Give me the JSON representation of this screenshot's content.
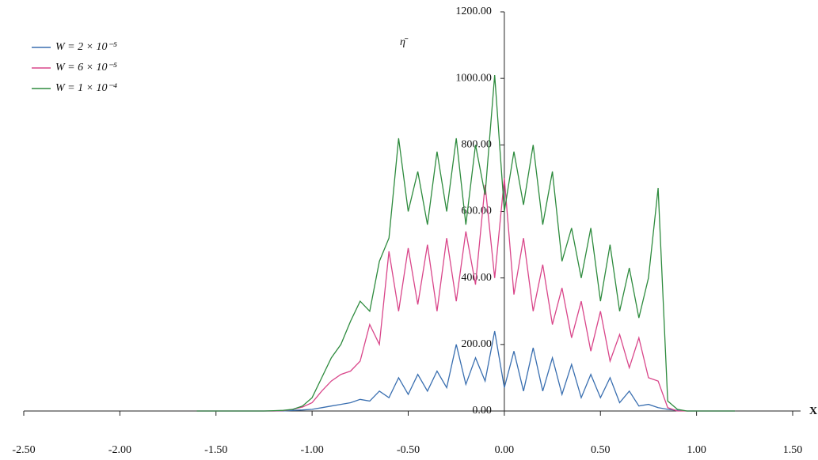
{
  "chart_data": {
    "type": "line",
    "x_label": "X",
    "y_label": "η̄",
    "x": [
      -1.6,
      -1.55,
      -1.5,
      -1.45,
      -1.4,
      -1.35,
      -1.3,
      -1.25,
      -1.2,
      -1.15,
      -1.1,
      -1.05,
      -1.0,
      -0.95,
      -0.9,
      -0.85,
      -0.8,
      -0.75,
      -0.7,
      -0.65,
      -0.6,
      -0.55,
      -0.5,
      -0.45,
      -0.4,
      -0.35,
      -0.3,
      -0.25,
      -0.2,
      -0.15,
      -0.1,
      -0.05,
      0.0,
      0.05,
      0.1,
      0.15,
      0.2,
      0.25,
      0.3,
      0.35,
      0.4,
      0.45,
      0.5,
      0.55,
      0.6,
      0.65,
      0.7,
      0.75,
      0.8,
      0.85,
      0.9,
      0.95,
      1.0,
      1.05,
      1.1,
      1.15,
      1.2
    ],
    "series": [
      {
        "name": "W = 2 × 10⁻⁵",
        "color": "#3a6fb0",
        "values": [
          0,
          0,
          0,
          0,
          0,
          0,
          0,
          0,
          0,
          0,
          2,
          3,
          5,
          10,
          15,
          20,
          25,
          35,
          30,
          60,
          40,
          100,
          50,
          110,
          60,
          120,
          70,
          200,
          80,
          160,
          90,
          240,
          70,
          180,
          60,
          190,
          60,
          160,
          50,
          140,
          40,
          110,
          40,
          100,
          25,
          60,
          15,
          20,
          10,
          5,
          2,
          0,
          0,
          0,
          0,
          0,
          0
        ]
      },
      {
        "name": "W = 6 × 10⁻⁵",
        "color": "#d9468a",
        "values": [
          0,
          0,
          0,
          0,
          0,
          0,
          0,
          0,
          0,
          1,
          5,
          12,
          25,
          60,
          90,
          110,
          120,
          150,
          260,
          200,
          480,
          300,
          490,
          320,
          500,
          300,
          520,
          330,
          540,
          380,
          680,
          400,
          700,
          350,
          520,
          300,
          440,
          260,
          370,
          220,
          330,
          180,
          300,
          150,
          230,
          130,
          220,
          100,
          90,
          10,
          0,
          0,
          0,
          0,
          0,
          0,
          0
        ]
      },
      {
        "name": "W = 1 × 10⁻⁴",
        "color": "#2e8b3e",
        "values": [
          0,
          0,
          0,
          0,
          0,
          0,
          0,
          0,
          1,
          2,
          5,
          15,
          40,
          100,
          160,
          200,
          270,
          330,
          300,
          450,
          520,
          820,
          600,
          720,
          560,
          780,
          600,
          820,
          560,
          800,
          650,
          1010,
          600,
          780,
          620,
          800,
          560,
          720,
          450,
          550,
          400,
          550,
          330,
          500,
          300,
          430,
          280,
          400,
          670,
          30,
          5,
          0,
          0,
          0,
          0,
          0,
          0
        ]
      }
    ],
    "xlim": [
      -2.5,
      1.5
    ],
    "xticks": [
      {
        "value": -2.5,
        "label": "-2.50"
      },
      {
        "value": -2.0,
        "label": "-2.00"
      },
      {
        "value": -1.5,
        "label": "-1.50"
      },
      {
        "value": -1.0,
        "label": "-1.00"
      },
      {
        "value": -0.5,
        "label": "-0.50"
      },
      {
        "value": 0,
        "label": "0.00"
      },
      {
        "value": 0.5,
        "label": "0.50"
      },
      {
        "value": 1.0,
        "label": "1.00"
      },
      {
        "value": 1.5,
        "label": "1.50"
      }
    ],
    "ylim": [
      0,
      1200
    ],
    "yticks": [
      {
        "value": 0,
        "label": "0.00"
      },
      {
        "value": 200,
        "label": "200.00"
      },
      {
        "value": 400,
        "label": "400.00"
      },
      {
        "value": 600,
        "label": "600.00"
      },
      {
        "value": 800,
        "label": "800.00"
      },
      {
        "value": 1000,
        "label": "1000.00"
      },
      {
        "value": 1200,
        "label": "1200.00"
      }
    ],
    "legend": "upper-left"
  }
}
